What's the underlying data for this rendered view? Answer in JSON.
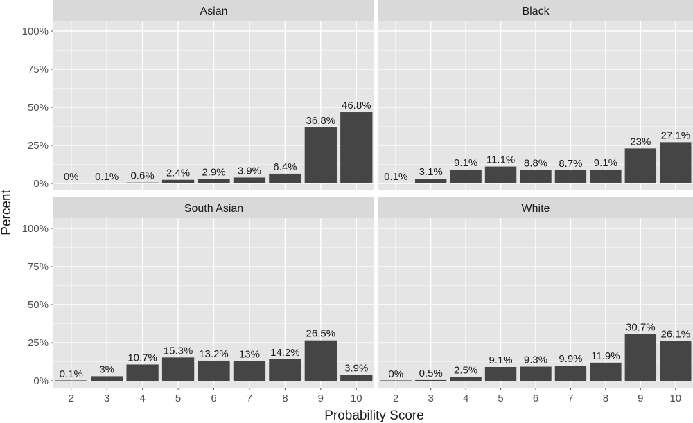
{
  "chart_data": {
    "type": "bar",
    "xlabel": "Probability Score",
    "ylabel": "Percent",
    "categories": [
      "2",
      "3",
      "4",
      "5",
      "6",
      "7",
      "8",
      "9",
      "10"
    ],
    "y_ticks": [
      "0%",
      "25%",
      "50%",
      "75%",
      "100%"
    ],
    "ylim": [
      0,
      100
    ],
    "grid": true,
    "colors": {
      "bar": "#454545",
      "panel": "#e5e5e5",
      "strip": "#d9d9d9",
      "grid": "#ffffff",
      "text": "#1a1a1a",
      "tick": "#4d4d4d"
    },
    "panels": [
      {
        "name": "Asian",
        "values": [
          0,
          0.1,
          0.6,
          2.4,
          2.9,
          3.9,
          6.4,
          36.8,
          46.8
        ],
        "labels": [
          "0%",
          "0.1%",
          "0.6%",
          "2.4%",
          "2.9%",
          "3.9%",
          "6.4%",
          "36.8%",
          "46.8%"
        ]
      },
      {
        "name": "Black",
        "values": [
          0.1,
          3.1,
          9.1,
          11.1,
          8.8,
          8.7,
          9.1,
          23,
          27.1
        ],
        "labels": [
          "0.1%",
          "3.1%",
          "9.1%",
          "11.1%",
          "8.8%",
          "8.7%",
          "9.1%",
          "23%",
          "27.1%"
        ]
      },
      {
        "name": "South Asian",
        "values": [
          0.1,
          3,
          10.7,
          15.3,
          13.2,
          13,
          14.2,
          26.5,
          3.9
        ],
        "labels": [
          "0.1%",
          "3%",
          "10.7%",
          "15.3%",
          "13.2%",
          "13%",
          "14.2%",
          "26.5%",
          "3.9%"
        ]
      },
      {
        "name": "White",
        "values": [
          0,
          0.5,
          2.5,
          9.1,
          9.3,
          9.9,
          11.9,
          30.7,
          26.1
        ],
        "labels": [
          "0%",
          "0.5%",
          "2.5%",
          "9.1%",
          "9.3%",
          "9.9%",
          "11.9%",
          "30.7%",
          "26.1%"
        ]
      }
    ]
  }
}
